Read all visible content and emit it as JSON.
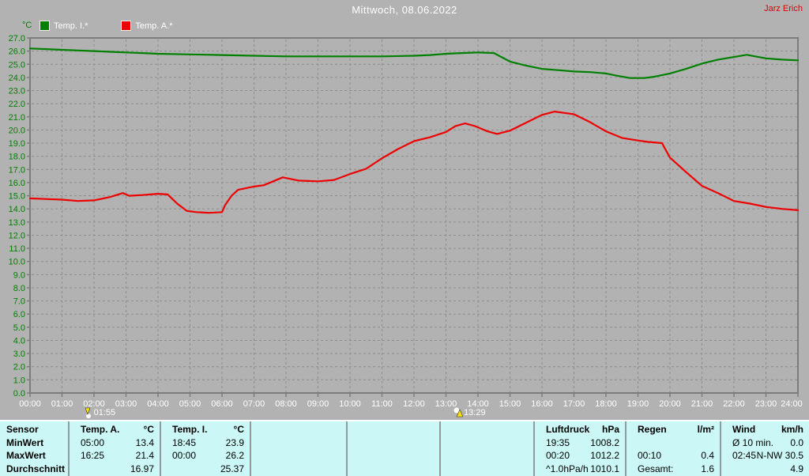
{
  "header": {
    "title": "Mittwoch, 08.06.2022",
    "author": "Jarz Erich"
  },
  "legend": {
    "unit_label": "°C",
    "items": [
      {
        "label": "Temp. I.*",
        "color": "#008000"
      },
      {
        "label": "Temp. A.*",
        "color": "#ee0000"
      }
    ]
  },
  "colors": {
    "background": "#b2b2b2",
    "grid": "#8d8d8d",
    "axis_frame": "#7c7c7c",
    "y_labels": "#008000",
    "x_labels": "#ffffff",
    "title_text": "#ffffff",
    "author_text": "#dd0000",
    "table_background": "#ccf7f7",
    "table_divider": "#919b9b",
    "marker_arrow": "#ffe400"
  },
  "chart_data": {
    "type": "line",
    "title": "Mittwoch, 08.06.2022",
    "ylabel": "°C",
    "xlabel": "",
    "ylim": [
      0,
      27
    ],
    "ytick_step": 1,
    "xlim": [
      0,
      24
    ],
    "grid": true,
    "legend_position": "top-left",
    "xtick_labels": [
      "00:00",
      "01:00",
      "02:00",
      "03:00",
      "04:00",
      "05:00",
      "06:00",
      "07:00",
      "08:00",
      "09:00",
      "10:00",
      "11:00",
      "12:00",
      "13:00",
      "14:00",
      "15:00",
      "16:00",
      "17:00",
      "18:00",
      "19:00",
      "20:00",
      "21:00",
      "22:00",
      "23:00",
      "24:00"
    ],
    "series": [
      {
        "name": "Temp. I.*",
        "color": "#008000",
        "points": [
          [
            0,
            26.2
          ],
          [
            0.5,
            26.15
          ],
          [
            1,
            26.1
          ],
          [
            1.5,
            26.05
          ],
          [
            2,
            26.0
          ],
          [
            2.5,
            25.95
          ],
          [
            3,
            25.9
          ],
          [
            3.5,
            25.85
          ],
          [
            4,
            25.8
          ],
          [
            5,
            25.75
          ],
          [
            6,
            25.7
          ],
          [
            7,
            25.65
          ],
          [
            8,
            25.6
          ],
          [
            9,
            25.6
          ],
          [
            10,
            25.6
          ],
          [
            11,
            25.6
          ],
          [
            12,
            25.65
          ],
          [
            12.5,
            25.7
          ],
          [
            13,
            25.8
          ],
          [
            13.5,
            25.85
          ],
          [
            14,
            25.9
          ],
          [
            14.5,
            25.85
          ],
          [
            15,
            25.2
          ],
          [
            15.5,
            24.9
          ],
          [
            16,
            24.65
          ],
          [
            16.5,
            24.55
          ],
          [
            17,
            24.45
          ],
          [
            17.5,
            24.4
          ],
          [
            18,
            24.3
          ],
          [
            18.3,
            24.15
          ],
          [
            18.75,
            23.95
          ],
          [
            19.2,
            23.95
          ],
          [
            19.5,
            24.05
          ],
          [
            20,
            24.3
          ],
          [
            20.5,
            24.65
          ],
          [
            21,
            25.05
          ],
          [
            21.5,
            25.35
          ],
          [
            22,
            25.55
          ],
          [
            22.4,
            25.72
          ],
          [
            23,
            25.45
          ],
          [
            23.5,
            25.35
          ],
          [
            24,
            25.3
          ]
        ]
      },
      {
        "name": "Temp. A.*",
        "color": "#ee0000",
        "points": [
          [
            0,
            14.8
          ],
          [
            0.5,
            14.75
          ],
          [
            1,
            14.7
          ],
          [
            1.5,
            14.6
          ],
          [
            2,
            14.65
          ],
          [
            2.5,
            14.9
          ],
          [
            2.9,
            15.2
          ],
          [
            3.1,
            15.0
          ],
          [
            3.5,
            15.05
          ],
          [
            4,
            15.15
          ],
          [
            4.3,
            15.1
          ],
          [
            4.6,
            14.4
          ],
          [
            4.9,
            13.85
          ],
          [
            5.2,
            13.75
          ],
          [
            5.6,
            13.7
          ],
          [
            6.0,
            13.75
          ],
          [
            6.1,
            14.3
          ],
          [
            6.3,
            15.0
          ],
          [
            6.5,
            15.45
          ],
          [
            6.8,
            15.6
          ],
          [
            7,
            15.7
          ],
          [
            7.3,
            15.8
          ],
          [
            7.6,
            16.1
          ],
          [
            7.9,
            16.4
          ],
          [
            8.1,
            16.3
          ],
          [
            8.4,
            16.15
          ],
          [
            9,
            16.1
          ],
          [
            9.5,
            16.2
          ],
          [
            10,
            16.65
          ],
          [
            10.5,
            17.05
          ],
          [
            11,
            17.85
          ],
          [
            11.5,
            18.55
          ],
          [
            12,
            19.15
          ],
          [
            12.5,
            19.45
          ],
          [
            13,
            19.85
          ],
          [
            13.3,
            20.3
          ],
          [
            13.6,
            20.5
          ],
          [
            13.9,
            20.3
          ],
          [
            14.3,
            19.9
          ],
          [
            14.6,
            19.7
          ],
          [
            15,
            19.95
          ],
          [
            15.5,
            20.55
          ],
          [
            16,
            21.15
          ],
          [
            16.4,
            21.4
          ],
          [
            16.7,
            21.3
          ],
          [
            17,
            21.2
          ],
          [
            17.5,
            20.6
          ],
          [
            18,
            19.9
          ],
          [
            18.5,
            19.4
          ],
          [
            19,
            19.2
          ],
          [
            19.3,
            19.1
          ],
          [
            19.75,
            19.0
          ],
          [
            20,
            17.9
          ],
          [
            20.5,
            16.8
          ],
          [
            21,
            15.75
          ],
          [
            21.5,
            15.2
          ],
          [
            22,
            14.6
          ],
          [
            22.5,
            14.4
          ],
          [
            23,
            14.15
          ],
          [
            23.5,
            14.0
          ],
          [
            24,
            13.9
          ]
        ]
      }
    ],
    "markers": [
      {
        "label": "01:55",
        "x": 1.9167,
        "icon": "down"
      },
      {
        "label": "13:29",
        "x": 13.4833,
        "icon": "up"
      }
    ]
  },
  "table": {
    "row_labels": [
      "Sensor",
      "MinWert",
      "MaxWert",
      "Durchschnitt"
    ],
    "columns": [
      {
        "name": "Temp. A.",
        "unit": "°C",
        "rows": [
          [
            "05:00",
            "13.4"
          ],
          [
            "16:25",
            "21.4"
          ],
          [
            "",
            "16.97"
          ]
        ]
      },
      {
        "name": "Temp. I.",
        "unit": "°C",
        "rows": [
          [
            "18:45",
            "23.9"
          ],
          [
            "00:00",
            "26.2"
          ],
          [
            "",
            "25.37"
          ]
        ]
      },
      {
        "name": "",
        "unit": "",
        "rows": [
          [
            "",
            ""
          ],
          [
            "",
            ""
          ],
          [
            "",
            ""
          ]
        ]
      },
      {
        "name": "",
        "unit": "",
        "rows": [
          [
            "",
            ""
          ],
          [
            "",
            ""
          ],
          [
            "",
            ""
          ]
        ]
      },
      {
        "name": "",
        "unit": "",
        "rows": [
          [
            "",
            ""
          ],
          [
            "",
            ""
          ],
          [
            "",
            ""
          ]
        ]
      },
      {
        "name": "Luftdruck",
        "unit": "hPa",
        "rows": [
          [
            "19:35",
            "1008.2"
          ],
          [
            "00:20",
            "1012.2"
          ],
          [
            "^1.0hPa/h",
            "1010.1"
          ]
        ]
      },
      {
        "name": "Regen",
        "unit": "l/m²",
        "rows": [
          [
            "",
            ""
          ],
          [
            "00:10",
            "0.4"
          ],
          [
            "Gesamt:",
            "1.6"
          ]
        ]
      },
      {
        "name": "Wind",
        "unit": "km/h",
        "rows": [
          [
            "Ø 10 min.",
            "0.0"
          ],
          [
            "02:45",
            "N-NW 30.5"
          ],
          [
            "",
            "4.9"
          ]
        ]
      }
    ]
  }
}
